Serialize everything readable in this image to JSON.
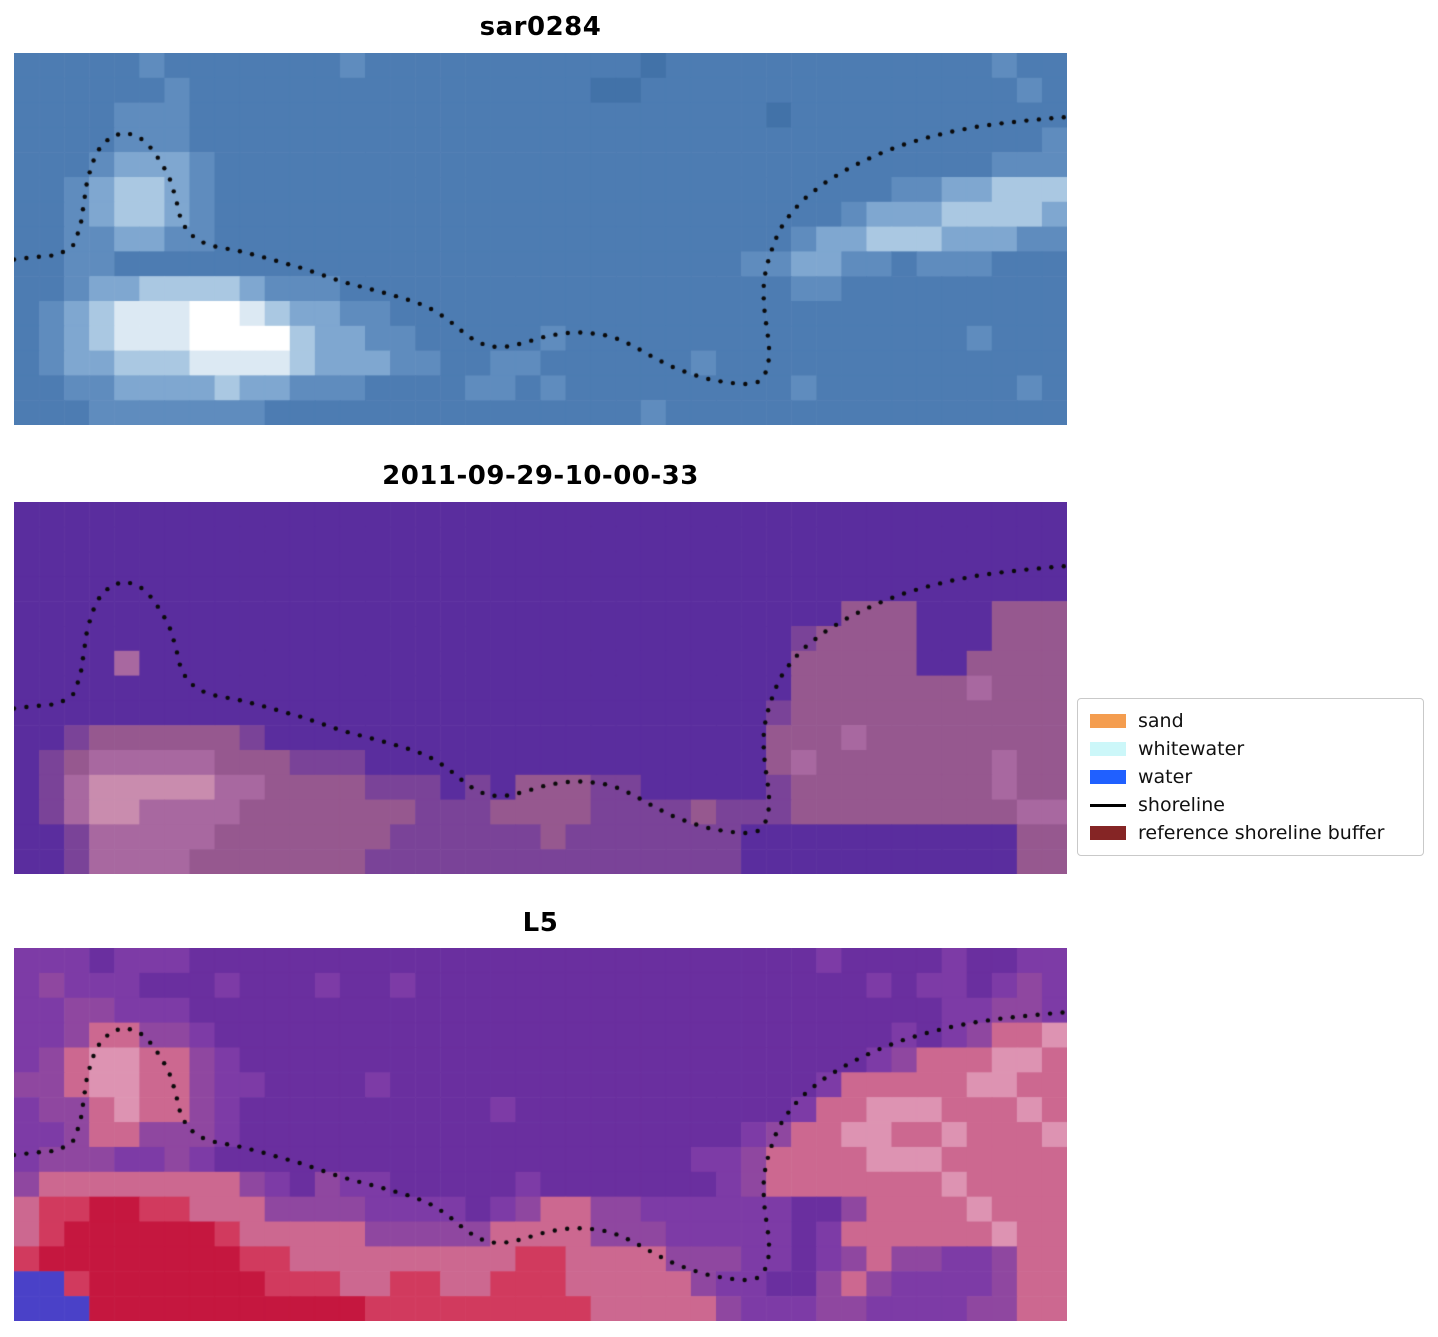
{
  "chart_data": {
    "type": "heatmap",
    "description": "Three vertically stacked coastal image panels with a dotted mapped shoreline overlaid, plus a classification legend",
    "panels": [
      {
        "title": "sar0284",
        "kind": "sar-backscatter-rgb-image",
        "grid": {
          "palette": {
            "a": "#4272a8",
            "b": "#4d7cb2",
            "c": "#5f8cbe",
            "d": "#7fa7d0",
            "e": "#aac8e2",
            "f": "#dce9f3",
            "g": "#ffffff"
          },
          "rows": [
            [
              "bbbbbc",
              "bbbbbb",
              "bcbbbb",
              "bbbbbb",
              "babbbb",
              "bbbbbb",
              "bbbcbb"
            ],
            [
              "bbbbbb",
              "cbbbbb",
              "bbbbbb",
              "bbbbba",
              "abbbbb",
              "bbbbbb",
              "bbbbcb"
            ],
            [
              "bbbbcc",
              "cbbbbb",
              "bbbbbb",
              "bbbbbb",
              "bbbbbb",
              "abbbbb",
              "bbbbbb"
            ],
            [
              "bbbbcc",
              "cbbbbb",
              "bbbbbb",
              "bbbbbb",
              "bbbbbb",
              "bbbbbb",
              "bbbbbc"
            ],
            [
              "bbbcdd",
              "dcbbbb",
              "bbbbbb",
              "bbbbbb",
              "bbbbbb",
              "bbbbbb",
              "bbbccc"
            ],
            [
              "bbcdee",
              "dcbbbb",
              "bbbbbb",
              "bbbbbb",
              "bbbbbb",
              "bbbbbc",
              "cddeee"
            ],
            [
              "bbcdee",
              "dcbbbb",
              "bbbbbb",
              "bbbbbb",
              "bbbbbb",
              "bbbcdd",
              "deeeed"
            ],
            [
              "bbccdd",
              "ccbbbb",
              "bbbbbb",
              "bbbbbb",
              "bbbbbb",
              "bcddee",
              "edddcc"
            ],
            [
              "bbccbb",
              "bbbbbb",
              "bbbbbb",
              "bbbbbb",
              "bbbbbc",
              "cddccb",
              "cccbbb"
            ],
            [
              "bbcdde",
              "eeedcc",
              "cbbbbb",
              "bbbbbb",
              "bbbbbb",
              "bccbbb",
              "bbbbbb"
            ],
            [
              "bcdeff",
              "fggfed",
              "dccbbb",
              "bbbbbb",
              "bbbbbb",
              "bbbbbb",
              "bbbbbb"
            ],
            [
              "bcdeff",
              "fgggge",
              "ddccbb",
              "bbbcbb",
              "bbbbbb",
              "bbbbbb",
              "bbcbbb"
            ],
            [
              "bcddee",
              "effffe",
              "dddccb",
              "bccbbb",
              "bbbcbb",
              "bbbbbb",
              "bbbbbb"
            ],
            [
              "bbccdd",
              "ddeddc",
              "ccbbbb",
              "ccbcbb",
              "bbbbbb",
              "bcbbbb",
              "bbbbcb"
            ],
            [
              "bbbccc",
              "ccccbb",
              "bbbbbb",
              "bbbbbb",
              "bcbbbb",
              "bbbbbb",
              "bbbbbb"
            ]
          ]
        }
      },
      {
        "title": "2011-09-29-10-00-33",
        "kind": "classification-overlay-image",
        "grid": {
          "palette": {
            "p": "#5a2d9e",
            "s": "#7a4398",
            "m": "#96588f",
            "n": "#a868a0",
            "r": "#c98cae"
          },
          "rows": [
            [
              "pppppp",
              "pppppp",
              "pppppp",
              "pppppp",
              "pppppp",
              "pppppp",
              "pppppp"
            ],
            [
              "pppppp",
              "pppppp",
              "pppppp",
              "pppppp",
              "pppppp",
              "pppppp",
              "pppppp"
            ],
            [
              "pppppp",
              "pppppp",
              "pppppp",
              "pppppp",
              "pppppp",
              "pppppp",
              "pppppp"
            ],
            [
              "pppppp",
              "pppppp",
              "pppppp",
              "pppppp",
              "pppppp",
              "pppppp",
              "pppppp"
            ],
            [
              "pppppp",
              "pppppp",
              "pppppp",
              "pppppp",
              "pppppp",
              "pppmmm",
              "pppmmm"
            ],
            [
              "pppppp",
              "pppppp",
              "pppppp",
              "pppppp",
              "pppppp",
              "psmmmm",
              "pppmmm"
            ],
            [
              "ppppnp",
              "pppppp",
              "pppppp",
              "pppppp",
              "pppppp",
              "pmmmmm",
              "ppmmmm"
            ],
            [
              "pppppp",
              "pppppp",
              "pppppp",
              "pppppp",
              "pppppp",
              "pmmmmm",
              "mmnmmm"
            ],
            [
              "pppppp",
              "pppppp",
              "pppppp",
              "pppppp",
              "pppppp",
              "smmmmm",
              "mmmmmm"
            ],
            [
              "ppsmmm",
              "mmmspp",
              "pppppp",
              "pppppp",
              "pppppp",
              "mmmnmm",
              "mmmmmm"
            ],
            [
              "psmnnn",
              "nnmmms",
              "sspppp",
              "pppppp",
              "pppppp",
              "mnmmmm",
              "mmmnmm"
            ],
            [
              "psnrrr",
              "rrnnmm",
              "mmsssp",
              "spmmms",
              "sppppp",
              "smmmmm",
              "mmmnmm"
            ],
            [
              "psnrrn",
              "nnnmmm",
              "mmmmss",
              "smmmms",
              "sssmss",
              "smmmmm",
              "mmmmnn"
            ],
            [
              "ppsnnn",
              "nnmmmm",
              "mmmsss",
              "sssmss",
              "sssssp",
              "pppppp",
              "ppppmm"
            ],
            [
              "ppsnnn",
              "nmmmmm",
              "mmssss",
              "ssssss",
              "sssssp",
              "pppppp",
              "ppppmm"
            ]
          ]
        }
      },
      {
        "title": "L5",
        "kind": "landsat5-rgb-image",
        "grid": {
          "palette": {
            "u": "#6a2f9f",
            "v": "#7d3ba6",
            "w": "#8f47a0",
            "k": "#cc6890",
            "l": "#dd93b2",
            "Q": "#d13a5e",
            "R": "#c5173f",
            "B": "#4a41c8"
          },
          "rows": [
            [
              "vvvuvv",
              "vuuuuu",
              "uuuuuu",
              "uuuuuu",
              "uuuuuu",
              "uuvuuu",
              "uvuuvv"
            ],
            [
              "vwvvvu",
              "uuvuuu",
              "vuuvuu",
              "uuuuuu",
              "uuuuuu",
              "uuuuvu",
              "vvuvwv"
            ],
            [
              "vvwwvv",
              "vuuuuu",
              "uuuuuu",
              "uuuuuu",
              "uuuuuu",
              "uuuuuu",
              "uvvwwv"
            ],
            [
              "vvwkkw",
              "wvuuuu",
              "uuuuuu",
              "uuuuuu",
              "uuuuuu",
              "uuuuuv",
              "uvwkkl"
            ],
            [
              "vwkllk",
              "kwvuuu",
              "uuuuuu",
              "uuuuuu",
              "uuuuuu",
              "uuuuvw",
              "kkkllk"
            ],
            [
              "wwkllk",
              "kwvvuu",
              "uuvuuu",
              "uuuuuu",
              "uuuuuu",
              "uuvkkk",
              "kkllkk"
            ],
            [
              "vwwklk",
              "kwvuuu",
              "uuuuuu",
              "uvuuuu",
              "uuuuuu",
              "uvkkll",
              "lkkklk"
            ],
            [
              "vvwkkw",
              "wwvuuu",
              "uuuuuu",
              "uuuuuu",
              "uuuuuv",
              "wkkllk",
              "klkkkl"
            ],
            [
              "vwwwvv",
              "wvuuuu",
              "uuuuuu",
              "uuuuuu",
              "uuuvvw",
              "kkkkll",
              "lkkkkk"
            ],
            [
              "wkkkkk",
              "kkkwvu",
              "wvvuuu",
              "uuvuuu",
              "uuuuvw",
              "kkkkkk",
              "klkkkk"
            ],
            [
              "kQQRRQ",
              "Qkkkww",
              "wwvvvv",
              "uvwkkw",
              "wvvvvv",
              "vuuwkk",
              "kklkkk"
            ],
            [
              "kQRRRR",
              "RRQkkk",
              "kkwwww",
              "wkkkkw",
              "wwvvvv",
              "vuvkkk",
              "kkklkk"
            ],
            [
              "QRRRRR",
              "RRRQQk",
              "kkkkkk",
              "kkQQkk",
              "kkwwwv",
              "vuvwkw",
              "wvvwkk"
            ],
            [
              "BBQRRR",
              "RRRRQQ",
              "QkkQQk",
              "kQQQkk",
              "kkkwvv",
              "uuwkwv",
              "vvvwkk"
            ],
            [
              "BBBRRR",
              "RRRRRR",
              "RRQQQQ",
              "QQQQQk",
              "kkkkwv",
              "vvwwvv",
              "vvwwkk"
            ]
          ]
        }
      }
    ],
    "shoreline": {
      "style": "dotted",
      "color": "#0a0a0a",
      "points": [
        [
          0.0,
          0.555
        ],
        [
          0.022,
          0.548
        ],
        [
          0.042,
          0.543
        ],
        [
          0.056,
          0.518
        ],
        [
          0.063,
          0.468
        ],
        [
          0.066,
          0.41
        ],
        [
          0.069,
          0.352
        ],
        [
          0.074,
          0.298
        ],
        [
          0.082,
          0.252
        ],
        [
          0.093,
          0.223
        ],
        [
          0.106,
          0.214
        ],
        [
          0.119,
          0.226
        ],
        [
          0.131,
          0.258
        ],
        [
          0.141,
          0.3
        ],
        [
          0.149,
          0.345
        ],
        [
          0.154,
          0.395
        ],
        [
          0.158,
          0.443
        ],
        [
          0.165,
          0.482
        ],
        [
          0.177,
          0.507
        ],
        [
          0.192,
          0.521
        ],
        [
          0.212,
          0.531
        ],
        [
          0.232,
          0.545
        ],
        [
          0.252,
          0.561
        ],
        [
          0.272,
          0.577
        ],
        [
          0.292,
          0.596
        ],
        [
          0.312,
          0.615
        ],
        [
          0.332,
          0.63
        ],
        [
          0.352,
          0.645
        ],
        [
          0.372,
          0.661
        ],
        [
          0.392,
          0.681
        ],
        [
          0.41,
          0.712
        ],
        [
          0.425,
          0.747
        ],
        [
          0.439,
          0.776
        ],
        [
          0.453,
          0.79
        ],
        [
          0.471,
          0.789
        ],
        [
          0.489,
          0.775
        ],
        [
          0.506,
          0.761
        ],
        [
          0.523,
          0.753
        ],
        [
          0.541,
          0.751
        ],
        [
          0.559,
          0.757
        ],
        [
          0.576,
          0.771
        ],
        [
          0.591,
          0.792
        ],
        [
          0.606,
          0.816
        ],
        [
          0.623,
          0.841
        ],
        [
          0.641,
          0.861
        ],
        [
          0.659,
          0.876
        ],
        [
          0.677,
          0.886
        ],
        [
          0.694,
          0.89
        ],
        [
          0.707,
          0.884
        ],
        [
          0.714,
          0.858
        ],
        [
          0.717,
          0.822
        ],
        [
          0.717,
          0.782
        ],
        [
          0.715,
          0.742
        ],
        [
          0.713,
          0.702
        ],
        [
          0.712,
          0.662
        ],
        [
          0.712,
          0.622
        ],
        [
          0.714,
          0.582
        ],
        [
          0.718,
          0.542
        ],
        [
          0.723,
          0.502
        ],
        [
          0.73,
          0.462
        ],
        [
          0.74,
          0.423
        ],
        [
          0.753,
          0.386
        ],
        [
          0.769,
          0.351
        ],
        [
          0.787,
          0.319
        ],
        [
          0.806,
          0.291
        ],
        [
          0.826,
          0.266
        ],
        [
          0.847,
          0.244
        ],
        [
          0.869,
          0.226
        ],
        [
          0.891,
          0.211
        ],
        [
          0.913,
          0.199
        ],
        [
          0.935,
          0.19
        ],
        [
          0.957,
          0.183
        ],
        [
          0.979,
          0.177
        ],
        [
          1.0,
          0.172
        ]
      ]
    },
    "legend": {
      "position": "center-right",
      "entries": [
        {
          "label": "sand",
          "type": "patch",
          "color": "#f49d4f"
        },
        {
          "label": "whitewater",
          "type": "patch",
          "color": "#ccf7f9"
        },
        {
          "label": "water",
          "type": "patch",
          "color": "#2060ff"
        },
        {
          "label": "shoreline",
          "type": "line",
          "color": "#000000"
        },
        {
          "label": "reference shoreline buffer",
          "type": "patch",
          "color": "#852525"
        }
      ]
    },
    "layout": {
      "grid_on": false,
      "axes_visible": false,
      "background": "#ffffff"
    }
  }
}
